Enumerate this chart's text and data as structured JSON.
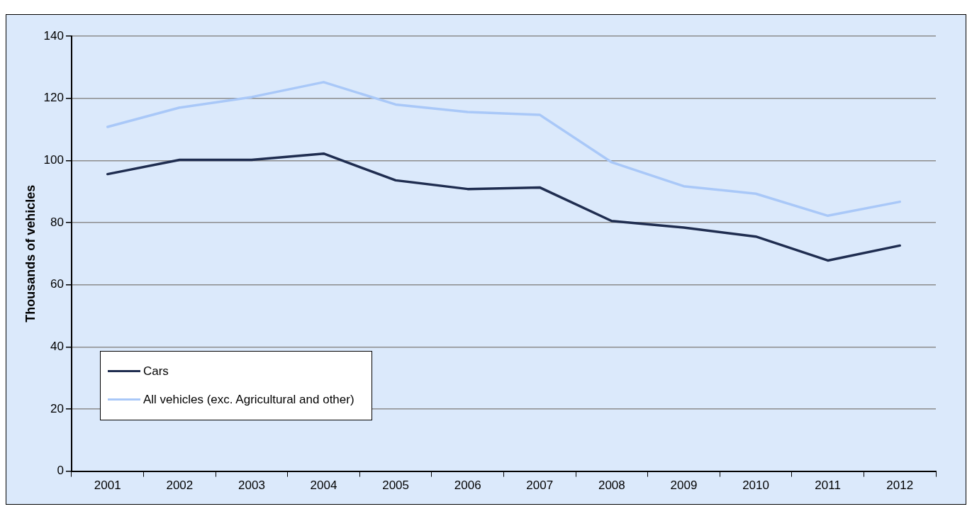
{
  "chart_data": {
    "type": "line",
    "ylabel": "Thousands of vehicles",
    "categories": [
      "2001",
      "2002",
      "2003",
      "2004",
      "2005",
      "2006",
      "2007",
      "2008",
      "2009",
      "2010",
      "2011",
      "2012"
    ],
    "series": [
      {
        "name": "Cars",
        "color": "#1f2d50",
        "values": [
          95.6,
          100.2,
          100.2,
          102.2,
          93.6,
          90.8,
          91.3,
          80.5,
          78.4,
          75.5,
          67.8,
          72.6
        ]
      },
      {
        "name": "All vehicles (exc. Agricultural and other)",
        "color": "#a9c8f8",
        "values": [
          110.8,
          117,
          120.4,
          125.2,
          118,
          115.6,
          114.7,
          99.4,
          91.7,
          89.3,
          82.2,
          86.7
        ]
      }
    ],
    "ylim": [
      0,
      140
    ],
    "yticks": [
      0,
      20,
      40,
      60,
      80,
      100,
      120,
      140
    ],
    "grid": "y",
    "legend": "bottom left",
    "marker": "none",
    "line_style": "solid"
  }
}
